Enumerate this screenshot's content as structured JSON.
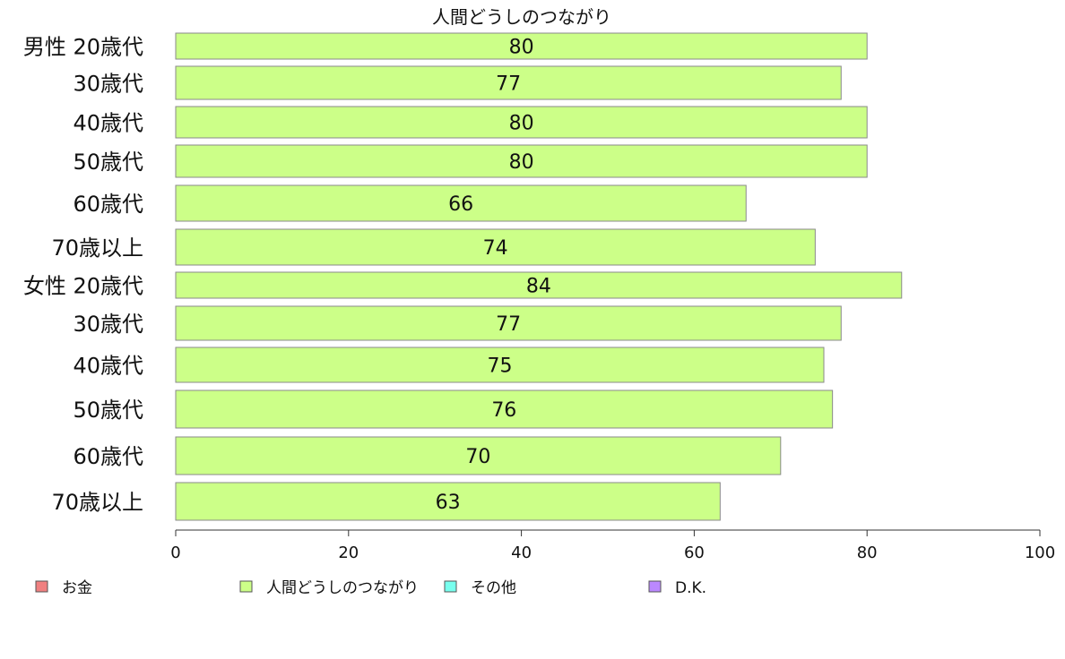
{
  "chart_data": {
    "type": "bar",
    "orientation": "horizontal",
    "title": "人間どうしのつながり",
    "categories": [
      "男性 20歳代",
      "30歳代",
      "40歳代",
      "50歳代",
      "60歳代",
      "70歳以上",
      "女性 20歳代",
      "30歳代",
      "40歳代",
      "50歳代",
      "60歳代",
      "70歳以上"
    ],
    "series": [
      {
        "name": "人間どうしのつながり",
        "color": "#ccff88",
        "values": [
          80,
          77,
          80,
          80,
          66,
          74,
          84,
          77,
          75,
          76,
          70,
          63
        ],
        "labels": [
          "80",
          "77",
          "80",
          "80",
          "66",
          "74",
          "84",
          "77",
          "75",
          "76",
          "70",
          "63"
        ]
      }
    ],
    "xlim": [
      0,
      100
    ],
    "xticks": [
      "0",
      "20",
      "40",
      "60",
      "80",
      "100"
    ],
    "xtick_values": [
      0,
      20,
      40,
      60,
      80,
      100
    ],
    "grid": false,
    "legend_position": "bottom",
    "legend": [
      {
        "label": "お金",
        "color": "#f08080"
      },
      {
        "label": "人間どうしのつながり",
        "color": "#ccff88"
      },
      {
        "label": "その他",
        "color": "#77ffee"
      },
      {
        "label": "D.K.",
        "color": "#bb88ff"
      }
    ]
  }
}
